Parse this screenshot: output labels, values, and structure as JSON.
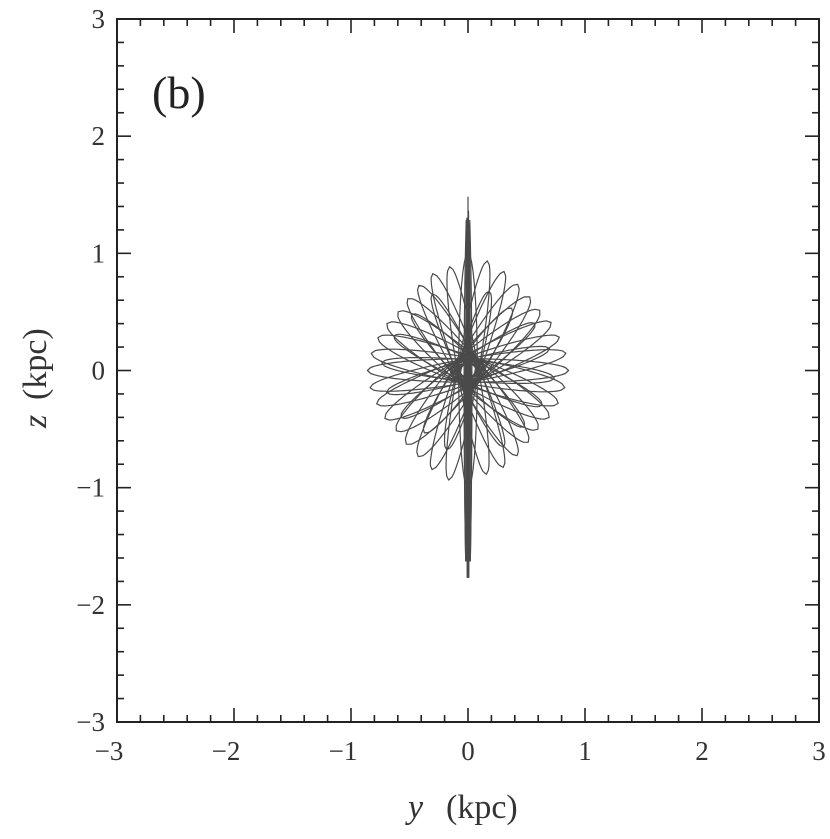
{
  "chart_data": {
    "type": "line",
    "panel_label": "(b)",
    "xlabel": "y",
    "xlabel_unit": "(kpc)",
    "ylabel": "z",
    "ylabel_unit": "(kpc)",
    "xlim": [
      -3,
      3
    ],
    "ylim": [
      -3,
      3
    ],
    "x_ticks": [
      -3,
      -2,
      -1,
      0,
      1,
      2,
      3
    ],
    "y_ticks": [
      -3,
      -2,
      -1,
      0,
      1,
      2,
      3
    ],
    "x_tick_labels": [
      "−3",
      "−2",
      "−1",
      "0",
      "1",
      "2",
      "3"
    ],
    "y_tick_labels": [
      "−3",
      "−2",
      "−1",
      "0",
      "1",
      "2",
      "3"
    ],
    "minor_tick_step": 0.2,
    "grid": false,
    "line_color": "#4a4a4a",
    "series": [
      {
        "description_of_trace": "rosette of elongated petal loops centered at origin plus a narrow vertical spike",
        "petals": [
          {
            "angle_deg": 90,
            "length": 1.0,
            "width": 0.08
          },
          {
            "angle_deg": 80,
            "length": 0.95,
            "width": 0.09
          },
          {
            "angle_deg": 70,
            "length": 0.9,
            "width": 0.1
          },
          {
            "angle_deg": 60,
            "length": 0.85,
            "width": 0.12
          },
          {
            "angle_deg": 50,
            "length": 0.82,
            "width": 0.13
          },
          {
            "angle_deg": 40,
            "length": 0.8,
            "width": 0.13
          },
          {
            "angle_deg": 30,
            "length": 0.82,
            "width": 0.12
          },
          {
            "angle_deg": 20,
            "length": 0.83,
            "width": 0.11
          },
          {
            "angle_deg": 10,
            "length": 0.85,
            "width": 0.1
          },
          {
            "angle_deg": 0,
            "length": 0.86,
            "width": 0.1
          },
          {
            "angle_deg": -10,
            "length": 0.84,
            "width": 0.11
          },
          {
            "angle_deg": -20,
            "length": 0.82,
            "width": 0.12
          },
          {
            "angle_deg": -30,
            "length": 0.8,
            "width": 0.13
          },
          {
            "angle_deg": -40,
            "length": 0.78,
            "width": 0.13
          },
          {
            "angle_deg": -50,
            "length": 0.8,
            "width": 0.12
          },
          {
            "angle_deg": -60,
            "length": 0.84,
            "width": 0.11
          },
          {
            "angle_deg": -70,
            "length": 0.88,
            "width": 0.1
          },
          {
            "angle_deg": -80,
            "length": 0.9,
            "width": 0.09
          },
          {
            "angle_deg": 75,
            "length": 0.7,
            "width": 0.09
          },
          {
            "angle_deg": 55,
            "length": 0.65,
            "width": 0.1
          },
          {
            "angle_deg": 35,
            "length": 0.7,
            "width": 0.1
          },
          {
            "angle_deg": 15,
            "length": 0.72,
            "width": 0.09
          },
          {
            "angle_deg": -5,
            "length": 0.74,
            "width": 0.09
          },
          {
            "angle_deg": -25,
            "length": 0.7,
            "width": 0.1
          },
          {
            "angle_deg": -45,
            "length": 0.68,
            "width": 0.1
          },
          {
            "angle_deg": -65,
            "length": 0.72,
            "width": 0.09
          }
        ],
        "spike": {
          "x_range": [
            -0.05,
            0.05
          ],
          "z_top": 1.48,
          "z_bottom": -1.83
        }
      }
    ]
  }
}
